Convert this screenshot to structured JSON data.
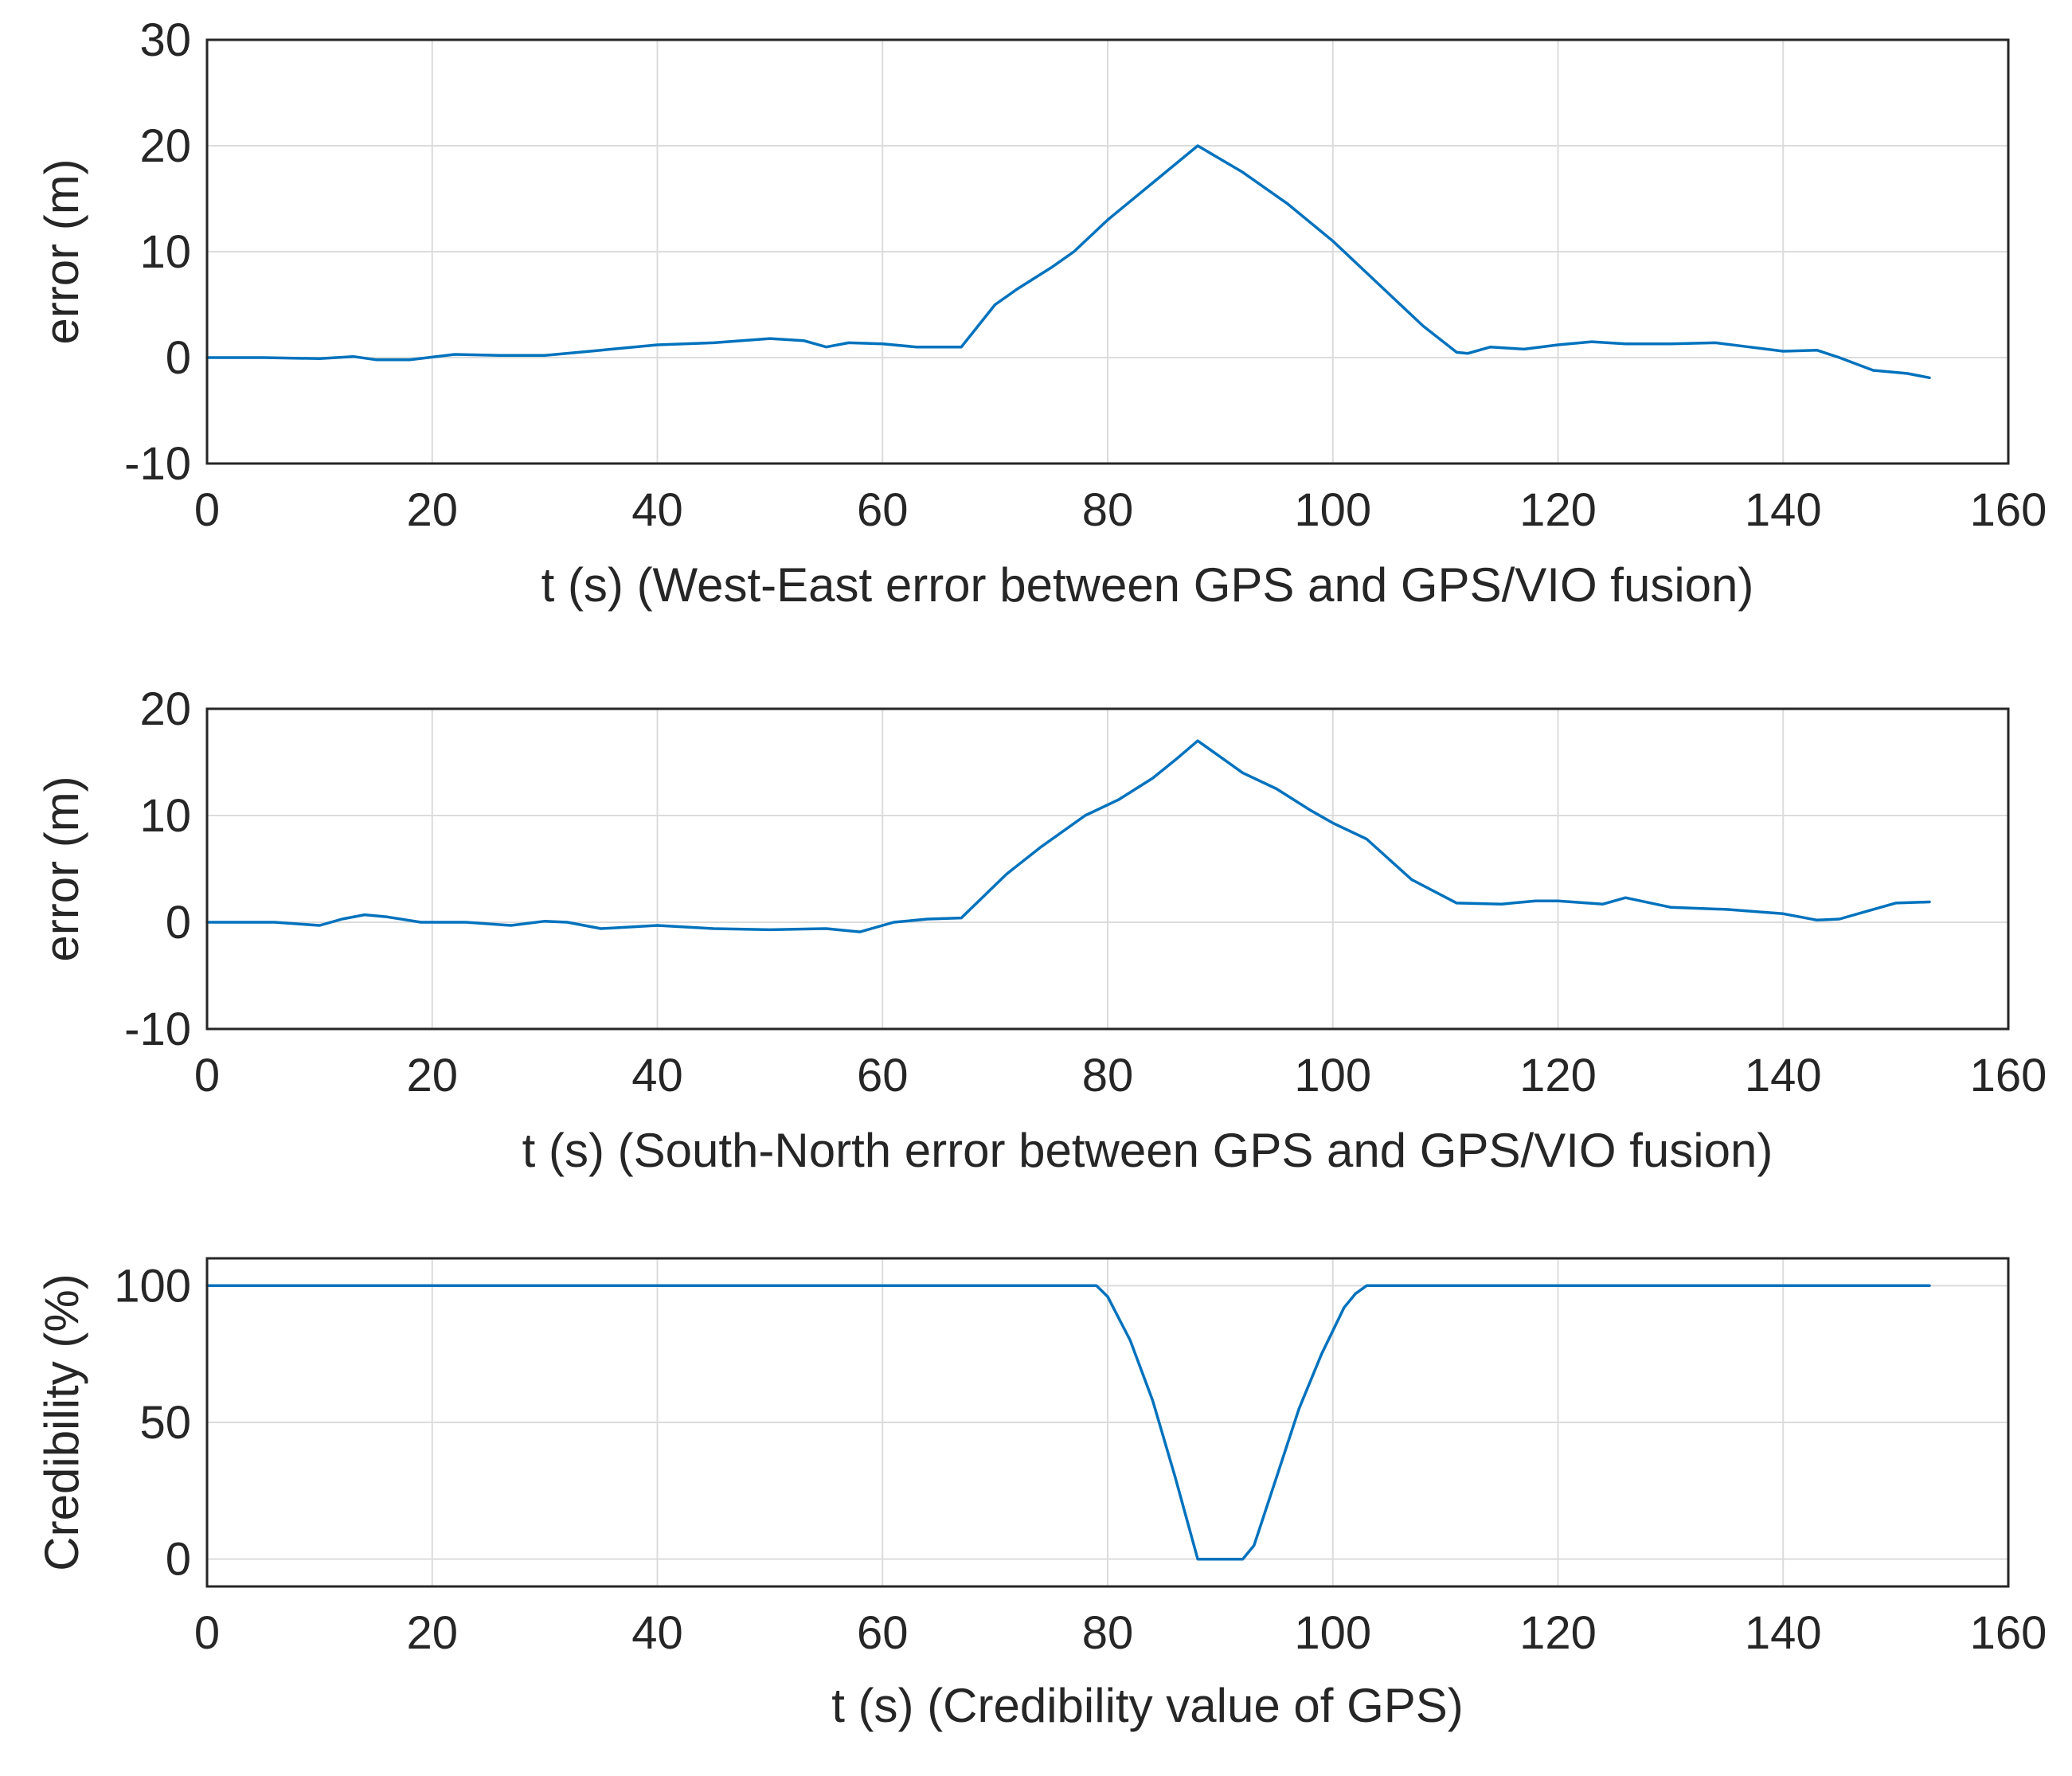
{
  "chart_data": [
    {
      "type": "line",
      "xlabel": "t (s) (West-East error between GPS and GPS/VIO fusion)",
      "ylabel": "error (m)",
      "xlim": [
        0,
        160
      ],
      "ylim": [
        -10,
        30
      ],
      "xticks": [
        "0",
        "20",
        "40",
        "60",
        "80",
        "100",
        "120",
        "140",
        "160"
      ],
      "yticks": [
        "30",
        "20",
        "10",
        "0",
        "-10"
      ],
      "grid": true,
      "series": [
        {
          "color": "#0072bd",
          "x": [
            0,
            5,
            10,
            13,
            15,
            18,
            22,
            26,
            30,
            33,
            35,
            40,
            45,
            50,
            53,
            55,
            57,
            60,
            63,
            67,
            70,
            72,
            75,
            77,
            80,
            84,
            88,
            92,
            96,
            100,
            104,
            108,
            111,
            112,
            114,
            117,
            120,
            123,
            126,
            130,
            134,
            137,
            140,
            143,
            145,
            148,
            151,
            153
          ],
          "y": [
            0,
            0,
            -0.1,
            0.1,
            -0.2,
            -0.2,
            0.3,
            0.2,
            0.2,
            0.5,
            0.7,
            1.2,
            1.4,
            1.8,
            1.6,
            1.0,
            1.4,
            1.3,
            1.0,
            1.0,
            5.0,
            6.5,
            8.5,
            10.0,
            13.0,
            16.5,
            20.0,
            17.5,
            14.5,
            11.0,
            7.0,
            3.0,
            0.5,
            0.4,
            1.0,
            0.8,
            1.2,
            1.5,
            1.3,
            1.3,
            1.4,
            1.0,
            0.6,
            0.7,
            0.0,
            -1.2,
            -1.5,
            -1.9
          ]
        }
      ]
    },
    {
      "type": "line",
      "xlabel": "t (s) (South-North error between GPS and GPS/VIO fusion)",
      "ylabel": "error (m)",
      "xlim": [
        0,
        160
      ],
      "ylim": [
        -10,
        20
      ],
      "xticks": [
        "0",
        "20",
        "40",
        "60",
        "80",
        "100",
        "120",
        "140",
        "160"
      ],
      "yticks": [
        "20",
        "10",
        "0",
        "-10"
      ],
      "grid": true,
      "series": [
        {
          "color": "#0072bd",
          "x": [
            0,
            6,
            10,
            12,
            14,
            16,
            19,
            23,
            27,
            30,
            32,
            35,
            40,
            45,
            50,
            55,
            58,
            61,
            64,
            67,
            71,
            74,
            78,
            81,
            84,
            86,
            88,
            90,
            92,
            95,
            98,
            100,
            103,
            107,
            111,
            115,
            118,
            120,
            124,
            126,
            130,
            135,
            140,
            143,
            145,
            148,
            150,
            153
          ],
          "y": [
            0,
            0,
            -0.3,
            0.3,
            0.7,
            0.5,
            0,
            0,
            -0.3,
            0.1,
            0,
            -0.6,
            -0.3,
            -0.6,
            -0.7,
            -0.6,
            -0.9,
            0,
            0.3,
            0.4,
            4.5,
            7.0,
            10.0,
            11.5,
            13.5,
            15.2,
            17.0,
            15.5,
            14.0,
            12.5,
            10.5,
            9.3,
            7.8,
            4.0,
            1.8,
            1.7,
            2.0,
            2.0,
            1.7,
            2.3,
            1.4,
            1.2,
            0.8,
            0.2,
            0.3,
            1.2,
            1.8,
            1.9
          ]
        }
      ]
    },
    {
      "type": "line",
      "xlabel": "t (s) (Credibility value of GPS)",
      "ylabel": "Credibility (%)",
      "xlim": [
        0,
        160
      ],
      "ylim": [
        -10,
        110
      ],
      "xticks": [
        "0",
        "20",
        "40",
        "60",
        "80",
        "100",
        "120",
        "140",
        "160"
      ],
      "yticks": [
        "100",
        "50",
        "0"
      ],
      "grid": true,
      "series": [
        {
          "color": "#0072bd",
          "x": [
            0,
            79,
            80,
            82,
            84,
            86,
            88,
            90,
            92,
            93,
            95,
            97,
            99,
            101,
            102,
            103,
            120,
            140,
            153
          ],
          "y": [
            100,
            100,
            96,
            80,
            58,
            30,
            0,
            0,
            0,
            5,
            30,
            55,
            75,
            92,
            97,
            100,
            100,
            100,
            100
          ]
        }
      ]
    }
  ]
}
